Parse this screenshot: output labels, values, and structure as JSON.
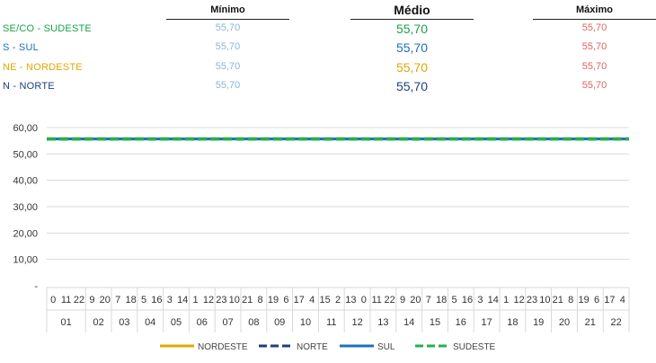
{
  "summary": {
    "headers": {
      "min": "Mínimo",
      "avg": "Médio",
      "max": "Máximo"
    },
    "rows": [
      {
        "region": "SE/CO - SUDESTE",
        "min": "55,70",
        "avg": "55,70",
        "max": "55,70",
        "color": "#1aa34a"
      },
      {
        "region": "S - SUL",
        "min": "55,70",
        "avg": "55,70",
        "max": "55,70",
        "color": "#1f6fbf"
      },
      {
        "region": "NE - NORDESTE",
        "min": "55,70",
        "avg": "55,70",
        "max": "55,70",
        "color": "#e0a800"
      },
      {
        "region": "N - NORTE",
        "min": "55,70",
        "avg": "55,70",
        "max": "55,70",
        "color": "#1f3f7f"
      }
    ],
    "colors": {
      "min": "#8ab4d8",
      "max": "#e06060",
      "avg_default": "#1f3f7f"
    }
  },
  "chart_data": {
    "type": "line",
    "title": "",
    "xlabel": "",
    "ylabel": "",
    "ylim": [
      0,
      60
    ],
    "y_ticks": [
      "-",
      "10,00",
      "20,00",
      "30,00",
      "40,00",
      "50,00",
      "60,00"
    ],
    "grid": true,
    "hour_labels": [
      "0",
      "11",
      "22",
      "9",
      "20",
      "7",
      "18",
      "5",
      "16",
      "3",
      "14",
      "1",
      "12",
      "23",
      "10",
      "21",
      "8",
      "19",
      "6",
      "17",
      "4",
      "15",
      "2",
      "13"
    ],
    "week_groups": [
      {
        "label": "01",
        "hours": [
          "0",
          "11",
          "22"
        ]
      },
      {
        "label": "02",
        "hours": [
          "9",
          "20"
        ]
      },
      {
        "label": "03",
        "hours": [
          "7",
          "18"
        ]
      },
      {
        "label": "04",
        "hours": [
          "5",
          "16"
        ]
      },
      {
        "label": "05",
        "hours": [
          "3",
          "14"
        ]
      },
      {
        "label": "06",
        "hours": [
          "1",
          "12"
        ]
      },
      {
        "label": "07",
        "hours": [
          "23",
          "10"
        ]
      },
      {
        "label": "08",
        "hours": [
          "21",
          "8"
        ]
      },
      {
        "label": "09",
        "hours": [
          "19",
          "6"
        ]
      },
      {
        "label": "10",
        "hours": [
          "17",
          "4"
        ]
      },
      {
        "label": "11",
        "hours": [
          "15",
          "2"
        ]
      },
      {
        "label": "12",
        "hours": [
          "13",
          "0"
        ]
      },
      {
        "label": "13",
        "hours": [
          "11",
          "22"
        ]
      },
      {
        "label": "14",
        "hours": [
          "9",
          "20"
        ]
      },
      {
        "label": "15",
        "hours": [
          "7",
          "18"
        ]
      },
      {
        "label": "16",
        "hours": [
          "5",
          "16"
        ]
      },
      {
        "label": "17",
        "hours": [
          "3",
          "14"
        ]
      },
      {
        "label": "18",
        "hours": [
          "1",
          "12"
        ]
      },
      {
        "label": "19",
        "hours": [
          "23",
          "10"
        ]
      },
      {
        "label": "20",
        "hours": [
          "21",
          "8"
        ]
      },
      {
        "label": "21",
        "hours": [
          "19",
          "6"
        ]
      },
      {
        "label": "22",
        "hours": [
          "17",
          "4"
        ]
      }
    ],
    "series": [
      {
        "name": "NORDESTE",
        "value": 55.7,
        "color": "#e0a800",
        "style": "solid"
      },
      {
        "name": "NORTE",
        "value": 55.7,
        "color": "#1f3f7f",
        "style": "dashed"
      },
      {
        "name": "SUL",
        "value": 55.7,
        "color": "#1f6fbf",
        "style": "solid"
      },
      {
        "name": "SUDESTE",
        "value": 55.7,
        "color": "#22b14c",
        "style": "dashed"
      }
    ],
    "legend_position": "bottom"
  }
}
